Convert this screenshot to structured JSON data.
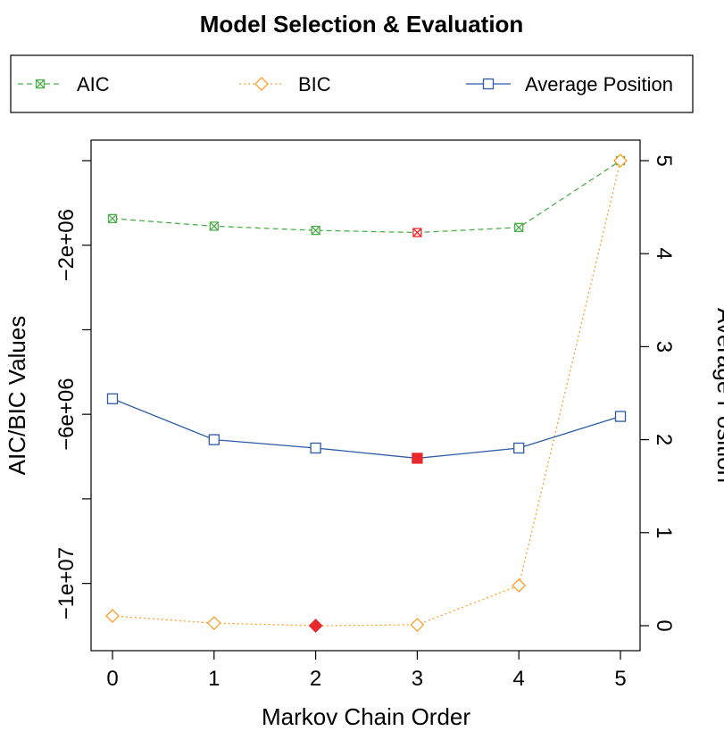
{
  "chart_data": {
    "type": "line",
    "title": "Model Selection & Evaluation",
    "xlabel": "Markov Chain Order",
    "ylabel": "AIC/BIC Values",
    "y2label": "Average Position",
    "x": [
      0,
      1,
      2,
      3,
      4,
      5
    ],
    "xticks": [
      "0",
      "1",
      "2",
      "3",
      "4",
      "5"
    ],
    "xlim": [
      0,
      5
    ],
    "ylim": [
      -11000000,
      0
    ],
    "yticks": [
      {
        "value": -2000000,
        "label": "-2e+06"
      },
      {
        "value": -6000000,
        "label": "-6e+06"
      },
      {
        "value": -10000000,
        "label": "-1e+07"
      }
    ],
    "yticks_minor": [
      0,
      -4000000,
      -8000000
    ],
    "y2lim": [
      0,
      5
    ],
    "y2ticks": [
      "0",
      "1",
      "2",
      "3",
      "4",
      "5"
    ],
    "legend_position": "top",
    "series": [
      {
        "name": "AIC",
        "axis": "left",
        "values": [
          -1370000,
          -1550000,
          -1650000,
          -1700000,
          -1580000,
          0
        ],
        "color": "#4daf4a",
        "line": "dashed",
        "marker": "square-x",
        "highlight_index": 3
      },
      {
        "name": "BIC",
        "axis": "left",
        "values": [
          -10770000,
          -10940000,
          -11000000,
          -10980000,
          -10050000,
          0
        ],
        "color": "#ff9f2a",
        "line": "dotted",
        "marker": "diamond",
        "highlight_index": 2
      },
      {
        "name": "Average Position",
        "axis": "right",
        "values": [
          2.44,
          2.0,
          1.91,
          1.8,
          1.91,
          2.25
        ],
        "color": "#2b5aa6",
        "line": "solid",
        "marker": "square",
        "highlight_index": 3
      }
    ],
    "highlight_color": "#e8282b"
  }
}
